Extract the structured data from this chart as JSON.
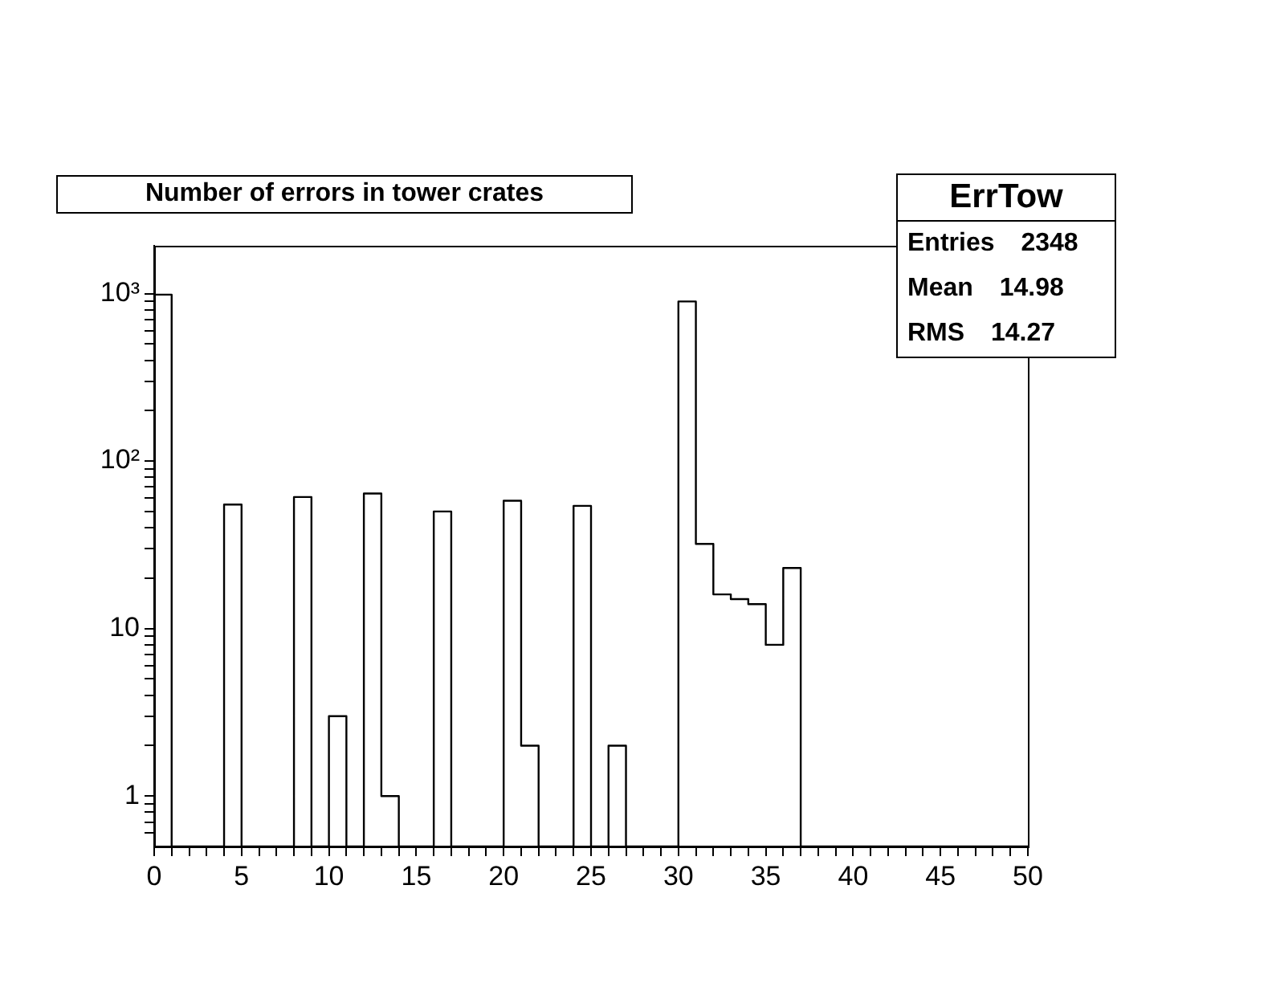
{
  "chart_data": {
    "type": "histogram",
    "title": "Number of errors in tower crates",
    "annotations": [
      "ErrTow",
      "Entries 2348",
      "Mean 14.98",
      "RMS 14.27"
    ],
    "bins": [
      0,
      1,
      2,
      3,
      4,
      5,
      6,
      7,
      8,
      9,
      10,
      11,
      12,
      13,
      14,
      15,
      16,
      17,
      18,
      19,
      20,
      21,
      22,
      23,
      24,
      25,
      26,
      27,
      28,
      29,
      30,
      31,
      32,
      33,
      34,
      35,
      36,
      37,
      38,
      39,
      40,
      41,
      42,
      43,
      44,
      45,
      46,
      47,
      48,
      49,
      50
    ],
    "values": [
      985,
      null,
      null,
      null,
      55,
      null,
      null,
      null,
      61,
      null,
      3,
      null,
      64,
      1,
      null,
      null,
      50,
      null,
      null,
      null,
      58,
      2,
      null,
      null,
      54,
      null,
      2,
      null,
      null,
      null,
      897,
      32,
      16,
      15,
      14,
      8,
      23,
      null,
      null,
      null,
      null,
      null,
      null,
      null,
      null,
      null,
      null,
      null,
      null,
      null
    ],
    "color": "#000000",
    "log": "y",
    "xlim": [
      0,
      50
    ],
    "xticks": [
      0,
      {
        "value": 1,
        "label": null
      },
      {
        "value": 2,
        "label": null
      },
      {
        "value": 3,
        "label": null
      },
      {
        "value": 4,
        "label": null
      },
      5,
      {
        "value": 6,
        "label": null
      },
      {
        "value": 7,
        "label": null
      },
      {
        "value": 8,
        "label": null
      },
      {
        "value": 9,
        "label": null
      },
      10,
      {
        "value": 11,
        "label": null
      },
      {
        "value": 12,
        "label": null
      },
      {
        "value": 13,
        "label": null
      },
      {
        "value": 14,
        "label": null
      },
      15,
      {
        "value": 16,
        "label": null
      },
      {
        "value": 17,
        "label": null
      },
      {
        "value": 18,
        "label": null
      },
      {
        "value": 19,
        "label": null
      },
      20,
      {
        "value": 21,
        "label": null
      },
      {
        "value": 22,
        "label": null
      },
      {
        "value": 23,
        "label": null
      },
      {
        "value": 24,
        "label": null
      },
      25,
      {
        "value": 26,
        "label": null
      },
      {
        "value": 27,
        "label": null
      },
      {
        "value": 28,
        "label": null
      },
      {
        "value": 29,
        "label": null
      },
      30,
      {
        "value": 31,
        "label": null
      },
      {
        "value": 32,
        "label": null
      },
      {
        "value": 33,
        "label": null
      },
      {
        "value": 34,
        "label": null
      },
      35,
      {
        "value": 36,
        "label": null
      },
      {
        "value": 37,
        "label": null
      },
      {
        "value": 38,
        "label": null
      },
      {
        "value": 39,
        "label": null
      },
      40,
      {
        "value": 41,
        "label": null
      },
      {
        "value": 42,
        "label": null
      },
      {
        "value": 43,
        "label": null
      },
      {
        "value": 44,
        "label": null
      },
      45,
      {
        "value": 46,
        "label": null
      },
      {
        "value": 47,
        "label": null
      },
      {
        "value": 48,
        "label": null
      },
      {
        "value": 49,
        "label": null
      },
      50
    ],
    "ylim": [
      0.5,
      1930
    ],
    "yticks": [
      {
        "value": 0.6,
        "label": null
      },
      {
        "value": 0.7,
        "label": null
      },
      {
        "value": 0.8,
        "label": null
      },
      {
        "value": 0.9,
        "label": null
      },
      1,
      {
        "value": 2,
        "label": null
      },
      {
        "value": 3,
        "label": null
      },
      {
        "value": 4,
        "label": null
      },
      {
        "value": 5,
        "label": null
      },
      {
        "value": 6,
        "label": null
      },
      {
        "value": 7,
        "label": null
      },
      {
        "value": 8,
        "label": null
      },
      {
        "value": 9,
        "label": null
      },
      10,
      {
        "value": 20,
        "label": null
      },
      {
        "value": 30,
        "label": null
      },
      {
        "value": 40,
        "label": null
      },
      {
        "value": 50,
        "label": null
      },
      {
        "value": 60,
        "label": null
      },
      {
        "value": 70,
        "label": null
      },
      {
        "value": 80,
        "label": null
      },
      {
        "value": 90,
        "label": null
      },
      {
        "value": 100,
        "label": "10²"
      },
      {
        "value": 200,
        "label": null
      },
      {
        "value": 300,
        "label": null
      },
      {
        "value": 400,
        "label": null
      },
      {
        "value": 500,
        "label": null
      },
      {
        "value": 600,
        "label": null
      },
      {
        "value": 700,
        "label": null
      },
      {
        "value": 800,
        "label": null
      },
      {
        "value": 900,
        "label": null
      },
      {
        "value": 1000,
        "label": "10³"
      }
    ]
  }
}
